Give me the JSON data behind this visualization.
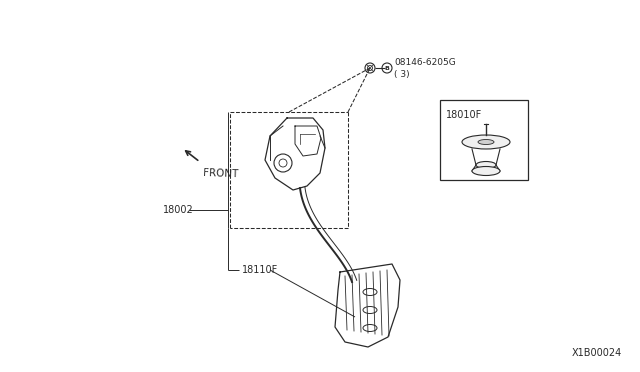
{
  "bg_color": "#ffffff",
  "line_color": "#2a2a2a",
  "text_color": "#2a2a2a",
  "fig_width": 6.4,
  "fig_height": 3.72,
  "diagram_id": "X1B00024",
  "part_08146_line1": "08146-6205G",
  "part_08146_line2": "( 3)",
  "part_18002": "18002",
  "part_18010F": "18010F",
  "part_18110F": "18110F",
  "front_label": "FRONT"
}
